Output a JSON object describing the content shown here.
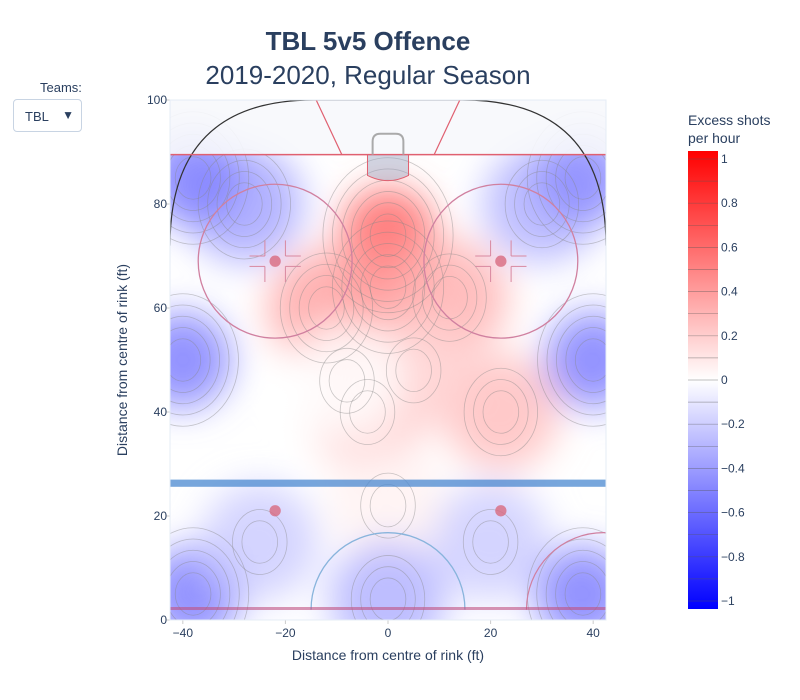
{
  "title": "TBL 5v5 Offence",
  "subtitle": "2019-2020, Regular Season",
  "controls": {
    "teams_label": "Teams:",
    "selected_team": "TBL"
  },
  "colorbar": {
    "title_line1": "Excess shots",
    "title_line2": "per hour",
    "ticks": [
      "1",
      "0.8",
      "0.6",
      "0.4",
      "0.2",
      "0",
      "−0.2",
      "−0.4",
      "−0.6",
      "−0.8",
      "−1"
    ]
  },
  "chart_data": {
    "type": "heatmap",
    "title": "TBL 5v5 Offence",
    "subtitle": "2019-2020, Regular Season",
    "xlabel": "Distance from centre of rink (ft)",
    "ylabel": "Distance from centre of rink (ft)",
    "xlim": [
      -42.5,
      42.5
    ],
    "ylim": [
      0,
      100
    ],
    "xticks": [
      -40,
      -20,
      0,
      20,
      40
    ],
    "yticks": [
      0,
      20,
      40,
      60,
      80,
      100
    ],
    "xtick_labels": [
      "−40",
      "−20",
      "0",
      "20",
      "40"
    ],
    "ytick_labels": [
      "0",
      "20",
      "40",
      "60",
      "80",
      "100"
    ],
    "colorscale_range": [
      -1,
      1
    ],
    "hotspots": [
      {
        "x": 0,
        "y": 74,
        "value": 0.6
      },
      {
        "x": 0,
        "y": 64,
        "value": 0.45
      },
      {
        "x": -12,
        "y": 60,
        "value": 0.35
      },
      {
        "x": 12,
        "y": 62,
        "value": 0.3
      },
      {
        "x": -4,
        "y": 40,
        "value": 0.2
      },
      {
        "x": 22,
        "y": 40,
        "value": 0.25
      },
      {
        "x": 5,
        "y": 48,
        "value": 0.18
      },
      {
        "x": -8,
        "y": 46,
        "value": 0.0
      },
      {
        "x": 0,
        "y": 22,
        "value": 0.05
      },
      {
        "x": -40,
        "y": 50,
        "value": -0.5
      },
      {
        "x": 40,
        "y": 50,
        "value": -0.5
      },
      {
        "x": -28,
        "y": 80,
        "value": -0.35
      },
      {
        "x": 30,
        "y": 80,
        "value": -0.3
      },
      {
        "x": -38,
        "y": 5,
        "value": -0.5
      },
      {
        "x": 38,
        "y": 5,
        "value": -0.5
      },
      {
        "x": -38,
        "y": 85,
        "value": -0.5
      },
      {
        "x": 38,
        "y": 85,
        "value": -0.45
      },
      {
        "x": 0,
        "y": 4,
        "value": -0.3
      },
      {
        "x": 20,
        "y": 15,
        "value": -0.2
      },
      {
        "x": -25,
        "y": 15,
        "value": -0.2
      }
    ]
  }
}
